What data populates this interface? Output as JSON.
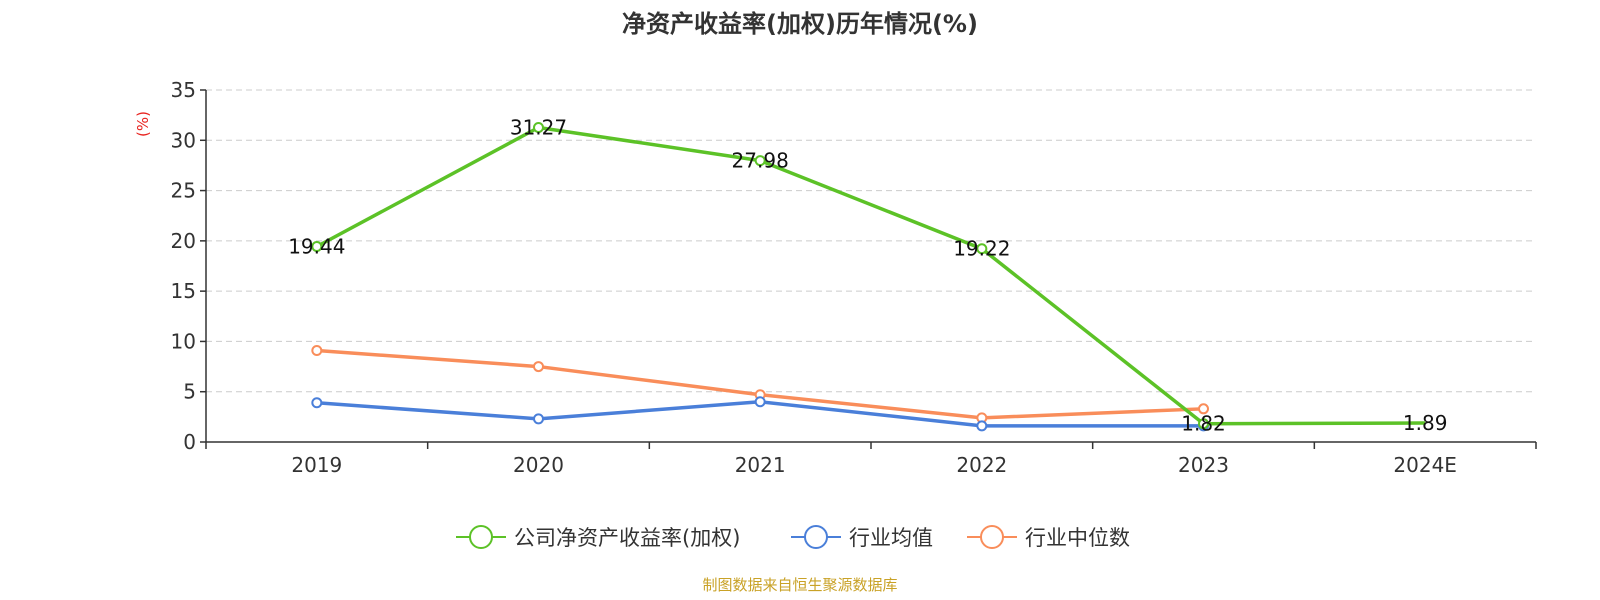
{
  "chart_data": {
    "type": "line",
    "title": "净资产收益率(加权)历年情况(%)",
    "ylabel": "(%)",
    "categories": [
      "2019",
      "2020",
      "2021",
      "2022",
      "2023",
      "2024E"
    ],
    "ylim": [
      0,
      35
    ],
    "yticks": [
      0,
      5,
      10,
      15,
      20,
      25,
      30,
      35
    ],
    "grid": true,
    "legend_position": "bottom",
    "series": [
      {
        "name": "公司净资产收益率(加权)",
        "color": "#5cc227",
        "values": [
          19.44,
          31.27,
          27.98,
          19.22,
          1.82,
          1.89
        ],
        "labels": [
          "19.44",
          "31.27",
          "27.98",
          "19.22",
          "1.82",
          "1.89"
        ]
      },
      {
        "name": "行业均值",
        "color": "#4a7fd9",
        "values": [
          3.9,
          2.3,
          4.0,
          1.6,
          1.6,
          null
        ]
      },
      {
        "name": "行业中位数",
        "color": "#f98d5a",
        "values": [
          9.1,
          7.5,
          4.7,
          2.4,
          3.3,
          null
        ]
      }
    ]
  },
  "footer": {
    "source": "制图数据来自恒生聚源数据库"
  }
}
